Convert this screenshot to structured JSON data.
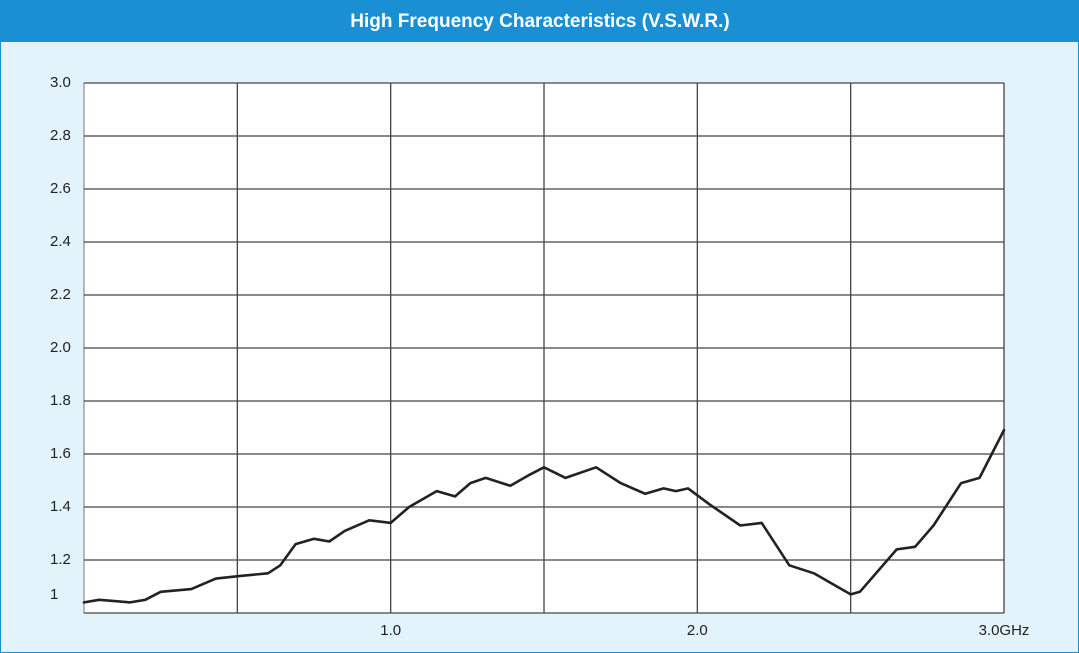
{
  "chart_data": {
    "type": "line",
    "title": "High Frequency Characteristics (V.S.W.R.)",
    "x": [
      0,
      0.05,
      0.15,
      0.2,
      0.25,
      0.35,
      0.43,
      0.51,
      0.6,
      0.64,
      0.69,
      0.75,
      0.8,
      0.85,
      0.93,
      1.0,
      1.06,
      1.15,
      1.21,
      1.26,
      1.31,
      1.39,
      1.45,
      1.5,
      1.57,
      1.67,
      1.75,
      1.83,
      1.89,
      1.93,
      1.97,
      2.04,
      2.14,
      2.21,
      2.3,
      2.38,
      2.47,
      2.5,
      2.53,
      2.65,
      2.71,
      2.77,
      2.86,
      2.92,
      3.0
    ],
    "series": [
      {
        "color": "#222222",
        "values": [
          1.04,
          1.05,
          1.04,
          1.05,
          1.08,
          1.09,
          1.13,
          1.14,
          1.15,
          1.18,
          1.26,
          1.28,
          1.27,
          1.31,
          1.35,
          1.34,
          1.4,
          1.46,
          1.44,
          1.49,
          1.51,
          1.48,
          1.52,
          1.55,
          1.51,
          1.55,
          1.49,
          1.45,
          1.47,
          1.46,
          1.47,
          1.41,
          1.33,
          1.34,
          1.18,
          1.15,
          1.09,
          1.07,
          1.08,
          1.24,
          1.25,
          1.33,
          1.49,
          1.51,
          1.69
        ]
      }
    ],
    "xlim": [
      0,
      3
    ],
    "xticks": [
      {
        "value": 0.5,
        "label": null
      },
      {
        "value": 1,
        "label": "1.0"
      },
      {
        "value": 1.5,
        "label": null
      },
      {
        "value": 2,
        "label": "2.0"
      },
      {
        "value": 2.5,
        "label": null
      },
      {
        "value": 3,
        "label": "3.0GHz"
      }
    ],
    "ylim": [
      1,
      3
    ],
    "yticks": [
      1,
      1.2,
      1.4,
      1.6,
      1.8,
      {
        "value": 2,
        "label": "2.0"
      },
      2.2,
      2.4,
      2.6,
      2.8,
      {
        "value": 3,
        "label": "3.0"
      }
    ],
    "grid": true
  }
}
